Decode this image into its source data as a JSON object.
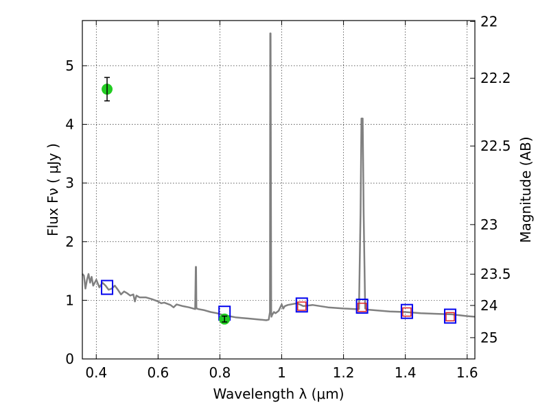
{
  "chart_data": {
    "type": "line",
    "xlabel": "Wavelength  λ (μm)",
    "ylabel": "Flux  Fν  ( μJy )",
    "ylabel_right": "Magnitude (AB)",
    "xlim": [
      0.355,
      1.625
    ],
    "ylim": [
      0,
      5.77
    ],
    "grid": true,
    "x_ticks": [
      0.4,
      0.6,
      0.8,
      1.0,
      1.2,
      1.4,
      1.6
    ],
    "x_tick_labels": [
      "0.4",
      "0.6",
      "0.8",
      "1",
      "1.2",
      "1.4",
      "1.6"
    ],
    "y_ticks": [
      0,
      1,
      2,
      3,
      4,
      5
    ],
    "y_tick_labels": [
      "0",
      "1",
      "2",
      "3",
      "4",
      "5"
    ],
    "y_right_ticks": [
      22,
      22.2,
      22.5,
      23,
      23.5,
      24,
      25
    ],
    "y_right_tick_labels": [
      "22",
      "22.2",
      "22.5",
      "23",
      "23.5",
      "24",
      "25"
    ],
    "colors": {
      "spectrum": "#808080",
      "observed": "#22cc22",
      "model_box": "#0000ee",
      "nir_box": "#dd2222",
      "grid": "#000000"
    },
    "series": [
      {
        "kind": "line",
        "x": [
          0.355,
          0.36,
          0.365,
          0.37,
          0.375,
          0.38,
          0.385,
          0.39,
          0.4,
          0.41,
          0.42,
          0.43,
          0.44,
          0.45,
          0.46,
          0.47,
          0.48,
          0.49,
          0.5,
          0.51,
          0.52,
          0.525,
          0.53,
          0.54,
          0.56,
          0.58,
          0.6,
          0.61,
          0.62,
          0.64,
          0.65,
          0.66,
          0.68,
          0.7,
          0.72,
          0.722,
          0.723,
          0.724,
          0.726,
          0.73,
          0.75,
          0.77,
          0.79,
          0.81,
          0.83,
          0.85,
          0.87,
          0.89,
          0.91,
          0.93,
          0.95,
          0.958,
          0.962,
          0.963,
          0.964,
          0.966,
          0.967,
          0.969,
          0.975,
          0.98,
          0.99,
          1.0,
          1.005,
          1.01,
          1.02,
          1.05,
          1.07,
          1.1,
          1.15,
          1.2,
          1.24,
          1.25,
          1.255,
          1.258,
          1.262,
          1.265,
          1.27,
          1.28,
          1.3,
          1.35,
          1.4,
          1.45,
          1.5,
          1.55,
          1.6,
          1.625
        ],
        "y": [
          1.45,
          1.42,
          1.2,
          1.35,
          1.45,
          1.3,
          1.4,
          1.25,
          1.35,
          1.22,
          1.3,
          1.25,
          1.18,
          1.2,
          1.25,
          1.18,
          1.1,
          1.15,
          1.12,
          1.08,
          1.1,
          0.98,
          1.08,
          1.05,
          1.05,
          1.02,
          0.98,
          0.95,
          0.96,
          0.92,
          0.88,
          0.93,
          0.9,
          0.88,
          0.85,
          1.57,
          1.57,
          0.86,
          0.86,
          0.85,
          0.83,
          0.8,
          0.78,
          0.75,
          0.73,
          0.71,
          0.7,
          0.69,
          0.68,
          0.67,
          0.66,
          0.67,
          0.8,
          5.55,
          5.55,
          0.8,
          0.72,
          0.75,
          0.8,
          0.78,
          0.82,
          0.93,
          0.86,
          0.9,
          0.92,
          0.95,
          0.9,
          0.92,
          0.88,
          0.86,
          0.85,
          0.85,
          2.5,
          4.1,
          4.1,
          2.5,
          0.86,
          0.84,
          0.83,
          0.81,
          0.8,
          0.78,
          0.77,
          0.76,
          0.73,
          0.72
        ]
      },
      {
        "kind": "model_boxes",
        "x": [
          0.435,
          0.815,
          1.065,
          1.26,
          1.405,
          1.545
        ],
        "y": [
          1.22,
          0.78,
          0.92,
          0.9,
          0.81,
          0.73
        ]
      },
      {
        "kind": "nir_boxes",
        "x": [
          1.065,
          1.26,
          1.405,
          1.545
        ],
        "y": [
          0.9,
          0.88,
          0.8,
          0.72
        ]
      },
      {
        "kind": "observed_points",
        "x": [
          0.435,
          0.815
        ],
        "y": [
          4.6,
          0.68
        ],
        "yerr": [
          0.2,
          0.05
        ]
      }
    ]
  }
}
